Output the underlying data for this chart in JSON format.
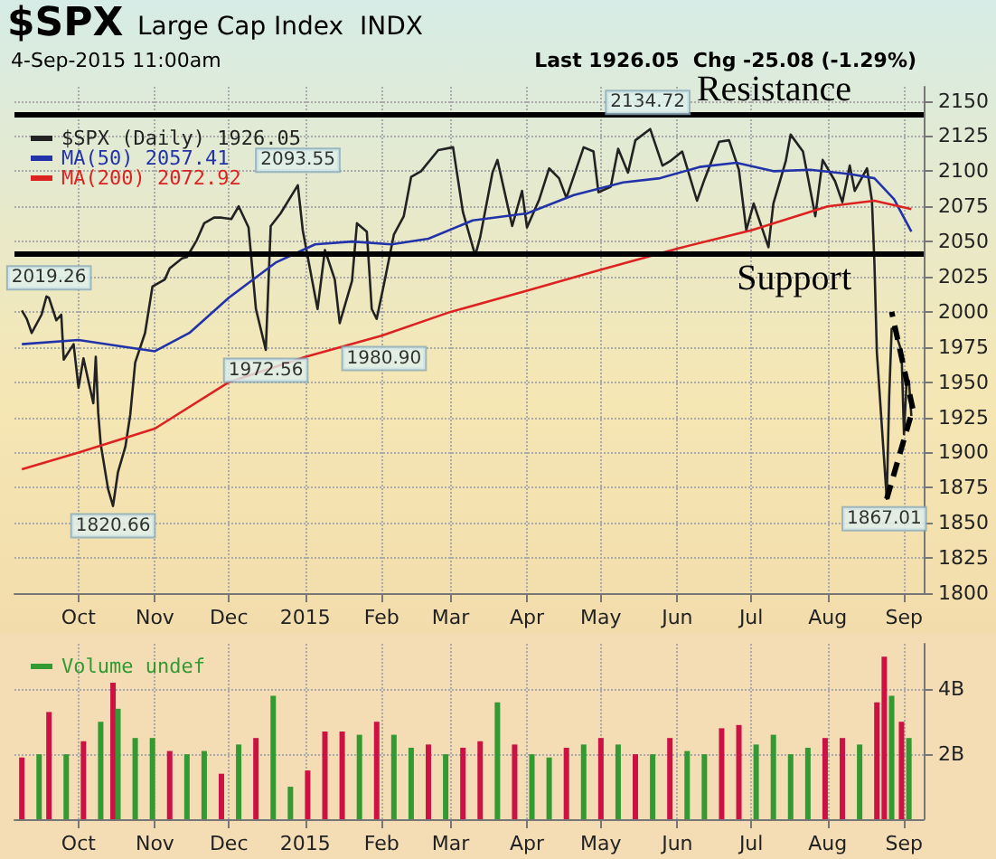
{
  "chart_data": [
    {
      "type": "line",
      "title": "$SPX",
      "subtitle": "Large Cap Index  INDX",
      "annotations": [
        "4-Sep-2015 11:00am",
        "Last 1926.05  Chg -25.08 (-1.29%)",
        {
          "text": "2019.26",
          "x": "2014-09-19",
          "y": 2010
        },
        {
          "text": "1820.66",
          "x": "2014-10-15",
          "y": 1862
        },
        {
          "text": "1972.56",
          "x": "2014-12-16",
          "y": 1972.56
        },
        {
          "text": "2093.55",
          "x": "2014-12-29",
          "y": 2093.55
        },
        {
          "text": "1980.90",
          "x": "2015-02-02",
          "y": 1980.9
        },
        {
          "text": "2134.72",
          "x": "2015-05-20",
          "y": 2134.72
        },
        {
          "text": "1867.01",
          "x": "2015-08-24",
          "y": 1867.01
        }
      ],
      "series": [
        {
          "name": "$SPX (Daily) 1926.05",
          "color": "#222222",
          "x": [
            "2014-09-08",
            "2014-09-10",
            "2014-09-12",
            "2014-09-16",
            "2014-09-18",
            "2014-09-19",
            "2014-09-22",
            "2014-09-24",
            "2014-09-25",
            "2014-09-29",
            "2014-10-01",
            "2014-10-03",
            "2014-10-07",
            "2014-10-08",
            "2014-10-09",
            "2014-10-10",
            "2014-10-13",
            "2014-10-15",
            "2014-10-17",
            "2014-10-20",
            "2014-10-22",
            "2014-10-24",
            "2014-10-28",
            "2014-10-31",
            "2014-11-05",
            "2014-11-07",
            "2014-11-12",
            "2014-11-14",
            "2014-11-18",
            "2014-11-21",
            "2014-11-25",
            "2014-11-28",
            "2014-12-02",
            "2014-12-05",
            "2014-12-09",
            "2014-12-12",
            "2014-12-16",
            "2014-12-18",
            "2014-12-22",
            "2014-12-29",
            "2014-12-31",
            "2015-01-06",
            "2015-01-09",
            "2015-01-13",
            "2015-01-15",
            "2015-01-20",
            "2015-01-22",
            "2015-01-26",
            "2015-01-28",
            "2015-01-30",
            "2015-02-02",
            "2015-02-06",
            "2015-02-10",
            "2015-02-13",
            "2015-02-17",
            "2015-02-24",
            "2015-03-02",
            "2015-03-06",
            "2015-03-11",
            "2015-03-13",
            "2015-03-18",
            "2015-03-20",
            "2015-03-26",
            "2015-03-30",
            "2015-04-01",
            "2015-04-06",
            "2015-04-10",
            "2015-04-14",
            "2015-04-17",
            "2015-04-24",
            "2015-04-28",
            "2015-04-30",
            "2015-05-05",
            "2015-05-08",
            "2015-05-12",
            "2015-05-15",
            "2015-05-21",
            "2015-05-26",
            "2015-05-29",
            "2015-06-03",
            "2015-06-09",
            "2015-06-12",
            "2015-06-18",
            "2015-06-22",
            "2015-06-26",
            "2015-06-29",
            "2015-07-02",
            "2015-07-08",
            "2015-07-10",
            "2015-07-15",
            "2015-07-17",
            "2015-07-22",
            "2015-07-27",
            "2015-07-30",
            "2015-08-04",
            "2015-08-07",
            "2015-08-10",
            "2015-08-12",
            "2015-08-17",
            "2015-08-19",
            "2015-08-20",
            "2015-08-21",
            "2015-08-24",
            "2015-08-25",
            "2015-08-26",
            "2015-08-27",
            "2015-08-28",
            "2015-08-31",
            "2015-09-01",
            "2015-09-02",
            "2015-09-03",
            "2015-09-04"
          ],
          "values": [
            2001,
            1995,
            1985,
            1998,
            2011,
            2010,
            1994,
            1998,
            1966,
            1977,
            1946,
            1967,
            1935,
            1968,
            1928,
            1906,
            1874,
            1862,
            1886,
            1904,
            1927,
            1964,
            1985,
            2018,
            2023,
            2031,
            2038,
            2039,
            2051,
            2063,
            2067,
            2067,
            2066,
            2075,
            2060,
            2002,
            1973,
            2061,
            2070,
            2090,
            2058,
            2002,
            2044,
            2023,
            1992,
            2022,
            2063,
            2057,
            2002,
            1995,
            2020,
            2055,
            2068,
            2096,
            2100,
            2115,
            2117,
            2071,
            2040,
            2053,
            2099,
            2108,
            2061,
            2086,
            2060,
            2080,
            2102,
            2095,
            2081,
            2117,
            2114,
            2085,
            2089,
            2116,
            2099,
            2122,
            2130,
            2104,
            2107,
            2114,
            2079,
            2094,
            2121,
            2122,
            2101,
            2058,
            2077,
            2046,
            2077,
            2107,
            2126,
            2114,
            2068,
            2108,
            2093,
            2078,
            2104,
            2086,
            2102,
            2079,
            2035,
            1971,
            1893,
            1867,
            1940,
            1988,
            1988,
            1972,
            1913,
            1948,
            1951,
            1926
          ]
        },
        {
          "name": "MA(50) 2057.41",
          "color": "#2233aa",
          "x": [
            "2014-09-08",
            "2014-10-01",
            "2014-10-20",
            "2014-11-01",
            "2014-11-15",
            "2014-12-01",
            "2014-12-20",
            "2015-01-05",
            "2015-01-20",
            "2015-02-05",
            "2015-02-20",
            "2015-03-10",
            "2015-04-01",
            "2015-04-20",
            "2015-05-10",
            "2015-05-25",
            "2015-06-10",
            "2015-06-25",
            "2015-07-10",
            "2015-07-25",
            "2015-08-10",
            "2015-08-20",
            "2015-08-28",
            "2015-09-04"
          ],
          "values": [
            1977,
            1980,
            1975,
            1972,
            1985,
            2010,
            2035,
            2048,
            2050,
            2048,
            2052,
            2065,
            2070,
            2083,
            2092,
            2095,
            2103,
            2106,
            2100,
            2101,
            2098,
            2095,
            2080,
            2057
          ]
        },
        {
          "name": "MA(200) 2072.92",
          "color": "#dd2222",
          "x": [
            "2014-09-08",
            "2014-10-01",
            "2014-11-01",
            "2014-12-01",
            "2015-01-01",
            "2015-02-01",
            "2015-03-01",
            "2015-04-01",
            "2015-05-01",
            "2015-06-01",
            "2015-07-01",
            "2015-08-01",
            "2015-08-20",
            "2015-09-04"
          ],
          "values": [
            1888,
            1900,
            1917,
            1950,
            1968,
            1983,
            2000,
            2015,
            2030,
            2045,
            2058,
            2075,
            2079,
            2073
          ]
        }
      ],
      "ref_lines": [
        {
          "axis": "y",
          "value": 2140,
          "label": "Resistance",
          "color": "#000000"
        },
        {
          "axis": "y",
          "value": 2042,
          "label": "Support",
          "color": "#000000"
        }
      ],
      "xlim": [
        "2014-09-05",
        "2015-09-09"
      ],
      "xticks": [
        {
          "value": "2014-10-01",
          "label": "Oct"
        },
        {
          "value": "2014-11-01",
          "label": "Nov"
        },
        {
          "value": "2014-12-01",
          "label": "Dec"
        },
        {
          "value": "2015-01-01",
          "label": "2015"
        },
        {
          "value": "2015-02-01",
          "label": "Feb"
        },
        {
          "value": "2015-03-01",
          "label": "Mar"
        },
        {
          "value": "2015-04-01",
          "label": "Apr"
        },
        {
          "value": "2015-05-01",
          "label": "May"
        },
        {
          "value": "2015-06-01",
          "label": "Jun"
        },
        {
          "value": "2015-07-01",
          "label": "Jul"
        },
        {
          "value": "2015-08-01",
          "label": "Aug"
        },
        {
          "value": "2015-09-01",
          "label": "Sep"
        }
      ],
      "ylim": [
        1800,
        2160
      ],
      "yticks": [
        1800,
        1825,
        1850,
        1875,
        1900,
        1925,
        1950,
        1975,
        2000,
        2025,
        2050,
        2075,
        2100,
        2125,
        2150
      ],
      "grid": true,
      "legend": "top left"
    },
    {
      "type": "bar",
      "series": [
        {
          "name": "Volume undef",
          "color": "#339933",
          "x": [
            "2014-09-08",
            "2014-09-15",
            "2014-09-19",
            "2014-09-26",
            "2014-10-03",
            "2014-10-10",
            "2014-10-15",
            "2014-10-17",
            "2014-10-24",
            "2014-10-31",
            "2014-11-07",
            "2014-11-14",
            "2014-11-21",
            "2014-11-28",
            "2014-12-05",
            "2014-12-12",
            "2014-12-19",
            "2014-12-26",
            "2015-01-02",
            "2015-01-09",
            "2015-01-16",
            "2015-01-23",
            "2015-01-30",
            "2015-02-06",
            "2015-02-13",
            "2015-02-20",
            "2015-02-27",
            "2015-03-06",
            "2015-03-13",
            "2015-03-20",
            "2015-03-27",
            "2015-04-03",
            "2015-04-10",
            "2015-04-17",
            "2015-04-24",
            "2015-05-01",
            "2015-05-08",
            "2015-05-15",
            "2015-05-22",
            "2015-05-29",
            "2015-06-05",
            "2015-06-12",
            "2015-06-19",
            "2015-06-26",
            "2015-07-03",
            "2015-07-10",
            "2015-07-17",
            "2015-07-24",
            "2015-07-31",
            "2015-08-07",
            "2015-08-14",
            "2015-08-21",
            "2015-08-24",
            "2015-08-27",
            "2015-08-31",
            "2015-09-03"
          ],
          "values": [
            1.9,
            2.0,
            3.3,
            2.0,
            2.4,
            3.0,
            4.2,
            3.4,
            2.5,
            2.5,
            2.1,
            2.0,
            2.1,
            1.4,
            2.3,
            2.5,
            3.8,
            1.0,
            1.5,
            2.7,
            2.7,
            2.6,
            3.0,
            2.6,
            2.2,
            2.3,
            2.0,
            2.2,
            2.4,
            3.6,
            2.3,
            2.0,
            1.9,
            2.2,
            2.3,
            2.5,
            2.3,
            2.0,
            2.0,
            2.5,
            2.1,
            2.0,
            2.8,
            2.9,
            2.3,
            2.6,
            2.0,
            2.2,
            2.5,
            2.5,
            2.3,
            3.6,
            5.0,
            3.8,
            3.0,
            2.5
          ],
          "colors": [
            "#cc1144",
            "#339933",
            "#cc1144",
            "#339933",
            "#cc1144",
            "#339933",
            "#cc1144",
            "#339933",
            "#339933",
            "#339933",
            "#cc1144",
            "#339933",
            "#339933",
            "#cc1144",
            "#339933",
            "#cc1144",
            "#339933",
            "#339933",
            "#cc1144",
            "#cc1144",
            "#cc1144",
            "#339933",
            "#cc1144",
            "#339933",
            "#339933",
            "#cc1144",
            "#339933",
            "#cc1144",
            "#cc1144",
            "#339933",
            "#cc1144",
            "#339933",
            "#339933",
            "#cc1144",
            "#339933",
            "#cc1144",
            "#339933",
            "#cc1144",
            "#339933",
            "#cc1144",
            "#339933",
            "#339933",
            "#cc1144",
            "#cc1144",
            "#339933",
            "#339933",
            "#339933",
            "#339933",
            "#cc1144",
            "#cc1144",
            "#339933",
            "#cc1144",
            "#cc1144",
            "#339933",
            "#cc1144",
            "#339933"
          ]
        }
      ],
      "xlim": [
        "2014-09-05",
        "2015-09-09"
      ],
      "xticks": [
        {
          "value": "2014-10-01",
          "label": "Oct"
        },
        {
          "value": "2014-11-01",
          "label": "Nov"
        },
        {
          "value": "2014-12-01",
          "label": "Dec"
        },
        {
          "value": "2015-01-01",
          "label": "2015"
        },
        {
          "value": "2015-02-01",
          "label": "Feb"
        },
        {
          "value": "2015-03-01",
          "label": "Mar"
        },
        {
          "value": "2015-04-01",
          "label": "Apr"
        },
        {
          "value": "2015-05-01",
          "label": "May"
        },
        {
          "value": "2015-06-01",
          "label": "Jun"
        },
        {
          "value": "2015-07-01",
          "label": "Jul"
        },
        {
          "value": "2015-08-01",
          "label": "Aug"
        },
        {
          "value": "2015-09-01",
          "label": "Sep"
        }
      ],
      "ylim": [
        0,
        5.4
      ],
      "yticks": [
        {
          "value": 2,
          "label": "2B"
        },
        {
          "value": 4,
          "label": "4B"
        }
      ],
      "grid": true,
      "legend": "top left"
    }
  ]
}
